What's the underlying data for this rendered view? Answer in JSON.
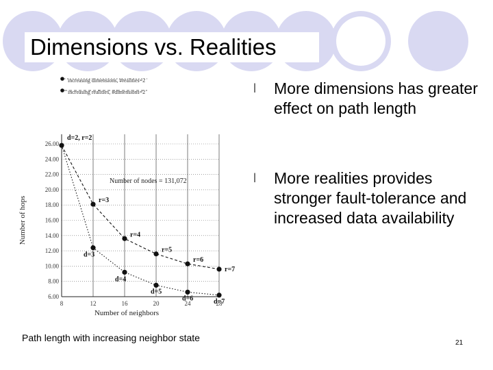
{
  "slide": {
    "title": "Dimensions vs. Realities",
    "bullets": [
      "More dimensions has greater effect on path length",
      "More realities provides stronger fault-tolerance and increased data availability"
    ],
    "bullet_symbol": "l",
    "caption": "Path length with increasing neighbor state",
    "page_number": "21",
    "circle_color": "#d9d9f2"
  },
  "chart_data": {
    "type": "line",
    "title": "",
    "annotation": "Number of nodes = 131,072",
    "xlabel": "Number of neighbors",
    "ylabel": "Number of hops",
    "x_ticks": [
      "8",
      "12",
      "16",
      "20",
      "24",
      "28"
    ],
    "y_ticks": [
      "6.00",
      "8.00",
      "10.00",
      "12.00",
      "14.00",
      "16.00",
      "18.00",
      "20.00",
      "22.00",
      "24.00",
      "26.00"
    ],
    "xlim": [
      8,
      28
    ],
    "ylim": [
      6,
      26
    ],
    "legend_placement": "top-left",
    "series": [
      {
        "name": "increasing dimensions, #realities=2",
        "style": "dotted",
        "x": [
          8,
          12,
          16,
          20,
          24,
          28
        ],
        "y": [
          25.8,
          12.4,
          9.2,
          7.5,
          6.6,
          6.2
        ],
        "labels": [
          "d=2, r=2",
          "d=3",
          "d=4",
          "d=5",
          "d=6",
          "d=7"
        ]
      },
      {
        "name": "increasing realities, #dimensions=2",
        "style": "dashed",
        "x": [
          8,
          12,
          16,
          20,
          24,
          28
        ],
        "y": [
          25.8,
          18.1,
          13.6,
          11.6,
          10.3,
          9.6
        ],
        "labels": [
          "d=2, r=2",
          "r=3",
          "r=4",
          "r=5",
          "r=6",
          "r=7"
        ]
      }
    ]
  }
}
